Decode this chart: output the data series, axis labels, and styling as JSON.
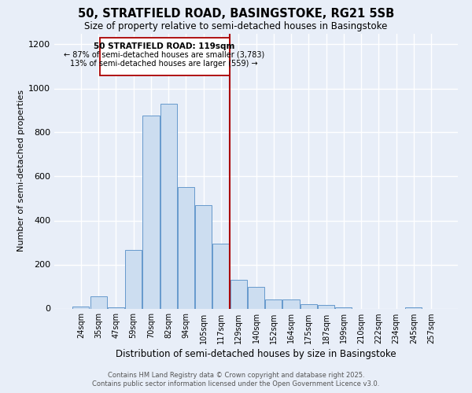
{
  "title": "50, STRATFIELD ROAD, BASINGSTOKE, RG21 5SB",
  "subtitle": "Size of property relative to semi-detached houses in Basingstoke",
  "xlabel": "Distribution of semi-detached houses by size in Basingstoke",
  "ylabel": "Number of semi-detached properties",
  "bar_labels": [
    "24sqm",
    "35sqm",
    "47sqm",
    "59sqm",
    "70sqm",
    "82sqm",
    "94sqm",
    "105sqm",
    "117sqm",
    "129sqm",
    "140sqm",
    "152sqm",
    "164sqm",
    "175sqm",
    "187sqm",
    "199sqm",
    "210sqm",
    "222sqm",
    "234sqm",
    "245sqm",
    "257sqm"
  ],
  "bar_values": [
    10,
    55,
    5,
    265,
    875,
    930,
    550,
    470,
    295,
    130,
    100,
    40,
    40,
    20,
    15,
    5,
    0,
    0,
    0,
    5,
    0
  ],
  "bar_color": "#ccddf0",
  "bar_edge_color": "#6699cc",
  "background_color": "#e8eef8",
  "grid_color": "#ffffff",
  "vline_color": "#aa0000",
  "annotation_title": "50 STRATFIELD ROAD: 119sqm",
  "annotation_line1": "← 87% of semi-detached houses are smaller (3,783)",
  "annotation_line2": "13% of semi-detached houses are larger (559) →",
  "annotation_box_color": "#ffffff",
  "annotation_box_edge": "#aa0000",
  "ylim": [
    0,
    1250
  ],
  "yticks": [
    0,
    200,
    400,
    600,
    800,
    1000,
    1200
  ],
  "footer1": "Contains HM Land Registry data © Crown copyright and database right 2025.",
  "footer2": "Contains public sector information licensed under the Open Government Licence v3.0.",
  "vline_bar_index": 8
}
